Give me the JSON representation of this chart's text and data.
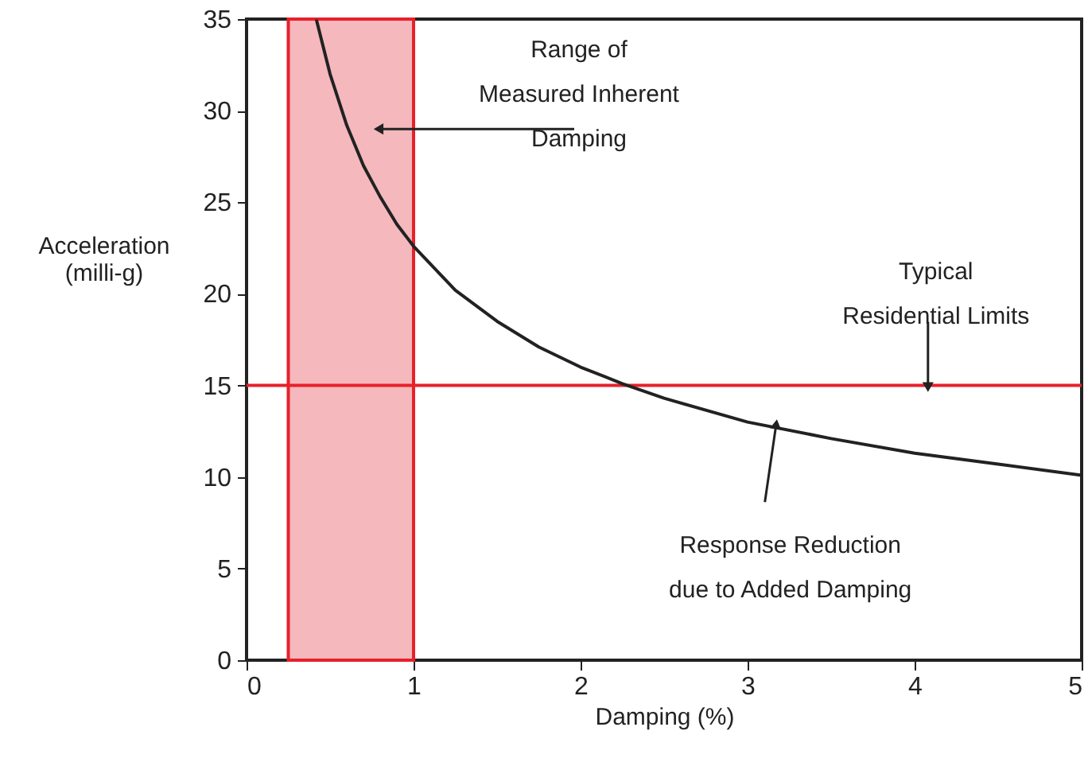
{
  "chart_data": {
    "type": "line",
    "xlabel": "Damping (%)",
    "ylabel": "Acceleration\n(milli-g)",
    "x": [
      0.42,
      0.5,
      0.6,
      0.7,
      0.8,
      0.9,
      1,
      1.25,
      1.5,
      1.75,
      2,
      2.25,
      2.5,
      3,
      3.5,
      4,
      4.5,
      5
    ],
    "series": [
      {
        "color": "#222222",
        "values": [
          34.9,
          32,
          29.2,
          27,
          25.3,
          23.8,
          22.6,
          20.2,
          18.5,
          17.1,
          16,
          15.1,
          14.3,
          13,
          12.1,
          11.3,
          10.7,
          10.1
        ]
      }
    ],
    "xlim": [
      0,
      5
    ],
    "ylim": [
      0,
      35
    ],
    "xticks": [
      0,
      1,
      2,
      3,
      4,
      5
    ],
    "yticks": [
      0,
      5,
      10,
      15,
      20,
      25,
      30,
      35
    ],
    "grid": false,
    "marker": "none",
    "line_style": "solid",
    "ref_lines": [
      {
        "axis": "y",
        "value": 15,
        "color": "#e8202a"
      }
    ],
    "bands": [
      {
        "axis": "x",
        "from": 0.25,
        "to": 1,
        "color": "#f4b8bd"
      }
    ],
    "annotations": [
      {
        "text": "Range of\nMeasured Inherent\nDamping",
        "x": 0.8,
        "y": 29
      },
      {
        "text": "Typical\nResidential Limits",
        "x": 4.08,
        "y": 15
      },
      {
        "text": "Response Reduction\ndue to Added Damping",
        "x": 3.17,
        "y": 12.8
      }
    ]
  }
}
